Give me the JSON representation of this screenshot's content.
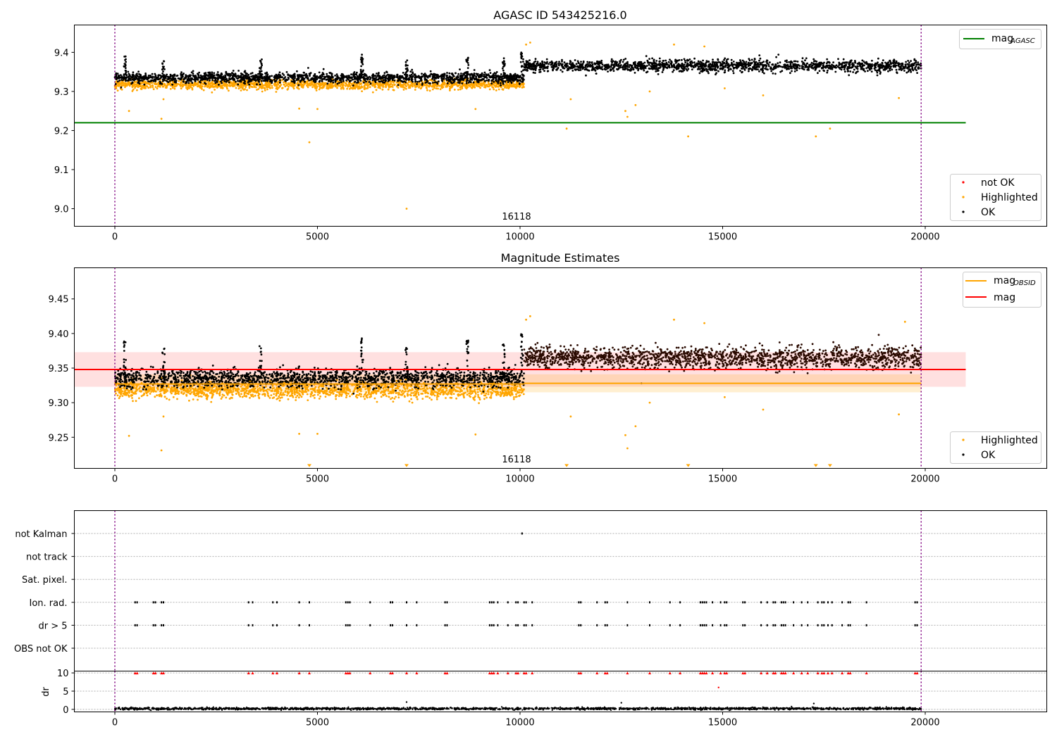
{
  "chart_data": [
    {
      "type": "scatter",
      "title": "AGASC ID 543425216.0",
      "annotation": "16118",
      "xlim": [
        -1000,
        23000
      ],
      "ylim": [
        8.955,
        9.47
      ],
      "xticks": [
        0,
        5000,
        10000,
        15000,
        20000
      ],
      "yticks": [
        9.0,
        9.1,
        9.2,
        9.3,
        9.4
      ],
      "ytick_labels": [
        "9.0",
        "9.1",
        "9.2",
        "9.3",
        "9.4"
      ],
      "vlines": [
        0,
        19900
      ],
      "lines": [
        {
          "name": "mag",
          "name_sub": "AGASC",
          "y": 9.22,
          "x": [
            -1000,
            21000
          ],
          "color": "#008000"
        }
      ],
      "legend_lines_placement": "top-right",
      "legend_points_placement": "bottom-right",
      "legend_points": [
        {
          "label": "not OK",
          "color": "#ff0000"
        },
        {
          "label": "Highlighted",
          "color": "#ffa500"
        },
        {
          "label": "OK",
          "color": "#000000"
        }
      ],
      "segments": [
        {
          "x": [
            0,
            10100
          ],
          "ok_center": 9.335,
          "ok_spread": 0.012,
          "hl_center": 9.318,
          "hl_spread": 0.011
        },
        {
          "x": [
            10100,
            19900
          ],
          "ok_center": 9.365,
          "ok_spread": 0.014
        }
      ],
      "outliers": [
        [
          350,
          9.25
        ],
        [
          1150,
          9.23
        ],
        [
          1200,
          9.28
        ],
        [
          4550,
          9.256
        ],
        [
          4800,
          9.17
        ],
        [
          5000,
          9.255
        ],
        [
          7200,
          9.0
        ],
        [
          8900,
          9.255
        ],
        [
          11150,
          9.205
        ],
        [
          11250,
          9.28
        ],
        [
          12600,
          9.25
        ],
        [
          12650,
          9.235
        ],
        [
          12850,
          9.265
        ],
        [
          13200,
          9.3
        ],
        [
          14150,
          9.185
        ],
        [
          15050,
          9.308
        ],
        [
          16000,
          9.29
        ],
        [
          17300,
          9.185
        ],
        [
          17650,
          9.205
        ],
        [
          19350,
          9.283
        ],
        [
          10150,
          9.42
        ],
        [
          10250,
          9.425
        ],
        [
          13800,
          9.42
        ],
        [
          14550,
          9.415
        ]
      ],
      "ok_spikes": [
        [
          250,
          9.39
        ],
        [
          1200,
          9.38
        ],
        [
          3600,
          9.385
        ],
        [
          6100,
          9.395
        ],
        [
          8700,
          9.39
        ],
        [
          9600,
          9.385
        ],
        [
          10050,
          9.4
        ],
        [
          7200,
          9.38
        ]
      ]
    },
    {
      "type": "scatter",
      "title": "Magnitude Estimates",
      "annotation": "16118",
      "xlim": [
        -1000,
        23000
      ],
      "ylim": [
        9.205,
        9.495
      ],
      "xticks": [
        0,
        5000,
        10000,
        15000,
        20000
      ],
      "yticks": [
        9.25,
        9.3,
        9.35,
        9.4,
        9.45
      ],
      "ytick_labels": [
        "9.25",
        "9.30",
        "9.35",
        "9.40",
        "9.45"
      ],
      "vlines": [
        0,
        19900
      ],
      "bands": [
        {
          "y": [
            9.323,
            9.373
          ],
          "x": [
            -1000,
            21000
          ],
          "color": "#ff0000",
          "opacity": 0.12
        },
        {
          "y": [
            9.315,
            9.341
          ],
          "x": [
            0,
            19900
          ],
          "color": "#ffa500",
          "opacity": 0.18
        }
      ],
      "lines": [
        {
          "name": "mag",
          "name_sub": "OBSID",
          "color": "#ffa500",
          "segments": [
            [
              0,
              10100,
              9.327
            ],
            [
              10100,
              19900,
              9.328
            ]
          ]
        },
        {
          "name": "mag",
          "name_sub": "",
          "y": 9.348,
          "x": [
            -1000,
            21000
          ],
          "color": "#ff0000"
        }
      ],
      "legend_lines_placement": "top-right",
      "legend_points_placement": "bottom-right",
      "legend_points": [
        {
          "label": "Highlighted",
          "color": "#ffa500"
        },
        {
          "label": "OK",
          "color": "#000000"
        }
      ],
      "segments": [
        {
          "x": [
            0,
            10100
          ],
          "ok_center": 9.335,
          "ok_spread": 0.012,
          "hl_center": 9.318,
          "hl_spread": 0.011
        },
        {
          "x": [
            10100,
            19900
          ],
          "ok_center": 9.365,
          "ok_spread": 0.014
        }
      ],
      "outliers": [
        [
          350,
          9.252
        ],
        [
          1150,
          9.231
        ],
        [
          1200,
          9.28
        ],
        [
          4550,
          9.255
        ],
        [
          5000,
          9.255
        ],
        [
          8900,
          9.254
        ],
        [
          11250,
          9.28
        ],
        [
          12600,
          9.253
        ],
        [
          12650,
          9.234
        ],
        [
          12850,
          9.266
        ],
        [
          13200,
          9.3
        ],
        [
          15050,
          9.308
        ],
        [
          16000,
          9.29
        ],
        [
          19350,
          9.283
        ],
        [
          10150,
          9.42
        ],
        [
          10250,
          9.425
        ],
        [
          13800,
          9.42
        ],
        [
          14550,
          9.415
        ],
        [
          19500,
          9.417
        ]
      ],
      "below_markers_x": [
        4800,
        7200,
        11150,
        14150,
        17300,
        17650
      ],
      "ok_spikes": [
        [
          250,
          9.39
        ],
        [
          1200,
          9.38
        ],
        [
          3600,
          9.385
        ],
        [
          6100,
          9.395
        ],
        [
          8700,
          9.39
        ],
        [
          9600,
          9.385
        ],
        [
          10050,
          9.4
        ],
        [
          7200,
          9.38
        ]
      ]
    },
    {
      "type": "scatter",
      "xlim": [
        -1000,
        23000
      ],
      "xticks": [
        0,
        5000,
        10000,
        15000,
        20000
      ],
      "vlines": [
        0,
        19900
      ],
      "categories": [
        "not Kalman",
        "not track",
        "Sat. pixel.",
        "Ion. rad.",
        "dr > 5",
        "OBS not OK"
      ],
      "flag_points": {
        "not Kalman": [
          10050
        ],
        "dr > 5": [
          500,
          550,
          950,
          1000,
          1150,
          1200,
          3300,
          3400,
          3900,
          4000,
          4550,
          4800,
          5700,
          5750,
          5800,
          6300,
          6800,
          6850,
          7200,
          7450,
          8150,
          8200,
          9250,
          9300,
          9350,
          9450,
          9700,
          9900,
          9950,
          10100,
          10150,
          10300,
          11450,
          11500,
          11900,
          12100,
          12150,
          12650,
          13200,
          13700,
          13950,
          14450,
          14500,
          14550,
          14600,
          14750,
          14950,
          15050,
          15100,
          15500,
          15550,
          15950,
          16100,
          16250,
          16300,
          16450,
          16500,
          16550,
          16750,
          16950,
          17100,
          17350,
          17450,
          17500,
          17600,
          17700,
          17950,
          18100,
          18150,
          18550,
          19750,
          19800
        ],
        "Ion. rad.": [
          500,
          550,
          950,
          1000,
          1150,
          1200,
          3300,
          3400,
          3900,
          4000,
          4550,
          4800,
          5700,
          5750,
          5800,
          6300,
          6800,
          6850,
          7200,
          7450,
          8150,
          8200,
          9250,
          9300,
          9350,
          9450,
          9700,
          9900,
          9950,
          10100,
          10150,
          10300,
          11450,
          11500,
          11900,
          12100,
          12150,
          12650,
          13200,
          13700,
          13950,
          14450,
          14500,
          14550,
          14600,
          14750,
          14950,
          15050,
          15100,
          15500,
          15550,
          15950,
          16100,
          16250,
          16300,
          16450,
          16500,
          16550,
          16750,
          16950,
          17100,
          17350,
          17450,
          17500,
          17600,
          17700,
          17950,
          18100,
          18150,
          18550,
          19750,
          19800
        ]
      }
    },
    {
      "type": "scatter",
      "xlim": [
        -1000,
        23000
      ],
      "ylim": [
        -0.7,
        10.5
      ],
      "ylabel": "dr",
      "xticks": [
        0,
        5000,
        10000,
        15000,
        20000
      ],
      "yticks": [
        0,
        5,
        10
      ],
      "vlines": [
        0,
        19900
      ],
      "baseline": {
        "x": [
          0,
          19900
        ],
        "center": 0.2,
        "spread": 0.15
      },
      "clipped_value": 10,
      "clipped_x": [
        500,
        550,
        950,
        1000,
        1150,
        1200,
        3300,
        3400,
        3900,
        4000,
        4550,
        4800,
        5700,
        5750,
        5800,
        6300,
        6800,
        6850,
        7200,
        7450,
        8150,
        8200,
        9250,
        9300,
        9350,
        9450,
        9700,
        9900,
        9950,
        10100,
        10150,
        10300,
        11450,
        11500,
        11900,
        12100,
        12150,
        12650,
        13200,
        13700,
        13950,
        14450,
        14500,
        14550,
        14600,
        14750,
        14950,
        15050,
        15100,
        15500,
        15550,
        15950,
        16100,
        16250,
        16300,
        16450,
        16500,
        16550,
        16750,
        16950,
        17100,
        17350,
        17450,
        17500,
        17600,
        17700,
        17950,
        18100,
        18150,
        18550,
        19750,
        19800
      ],
      "extra_points": [
        [
          14900,
          6.0,
          "#ff0000"
        ],
        [
          7200,
          2.0,
          "#000000"
        ],
        [
          12500,
          1.8,
          "#000000"
        ],
        [
          17250,
          1.6,
          "#000000"
        ]
      ]
    }
  ]
}
